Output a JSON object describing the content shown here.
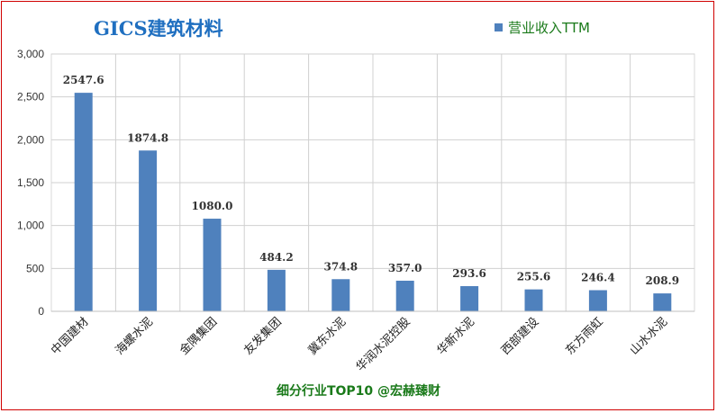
{
  "chart_data": {
    "type": "bar",
    "title": "GICS建筑材料",
    "categories": [
      "中国建材",
      "海螺水泥",
      "金隅集团",
      "友发集团",
      "冀东水泥",
      "华润水泥控股",
      "华新水泥",
      "西部建设",
      "东方雨虹",
      "山水水泥"
    ],
    "series": [
      {
        "name": "营业收入TTM",
        "values": [
          2547.6,
          1874.8,
          1080.0,
          484.2,
          374.8,
          357.0,
          293.6,
          255.6,
          246.4,
          208.9
        ],
        "data_labels": [
          "2547.6",
          "1874.8",
          "1080.0",
          "484.2",
          "374.8",
          "357.0",
          "293.6",
          "255.6",
          "246.4",
          "208.9"
        ]
      }
    ],
    "yticks": [
      "0",
      "500",
      "1,000",
      "1,500",
      "2,000",
      "2,500",
      "3,000"
    ],
    "ylim": [
      0,
      3000
    ],
    "grid": true,
    "legend_position": "top-right",
    "bar_color": "#4f81bd",
    "footer": "细分行业TOP10 @宏赫臻财"
  }
}
